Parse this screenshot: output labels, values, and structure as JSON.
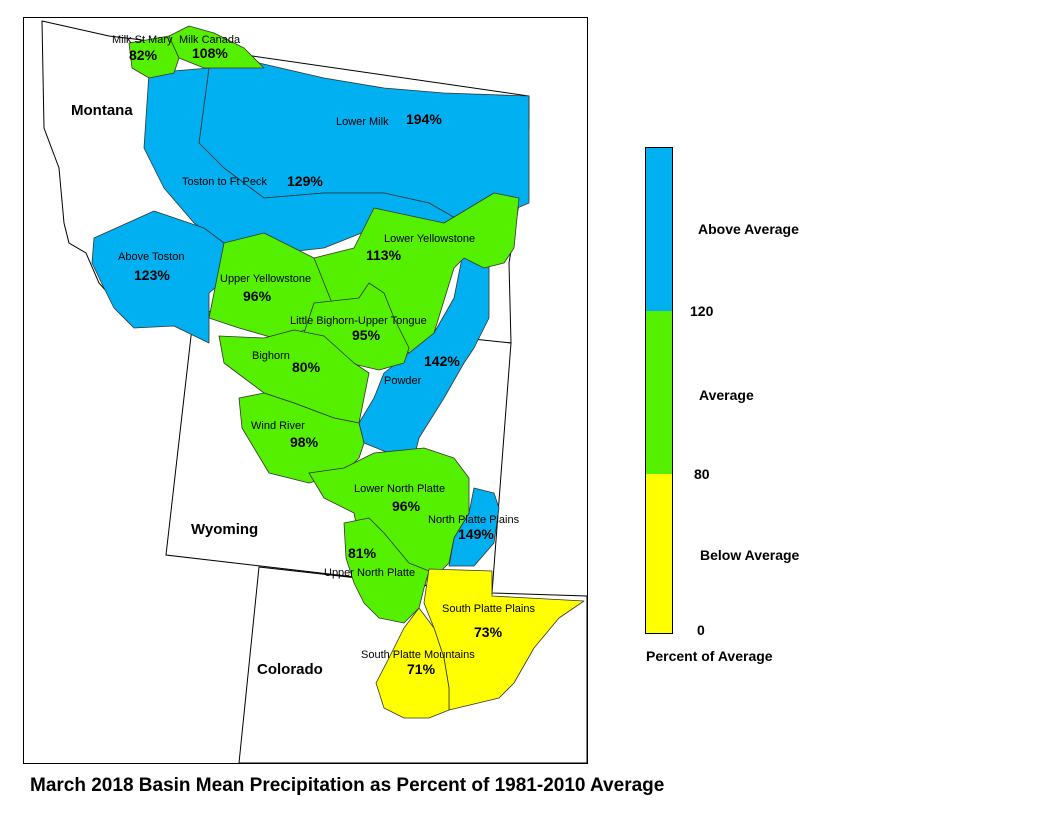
{
  "title": "March 2018 Basin Mean Precipitation as Percent of 1981-2010 Average",
  "colors": {
    "above": "#00B0F0",
    "average": "#55F000",
    "below": "#FFFF00"
  },
  "states": {
    "montana": "Montana",
    "wyoming": "Wyoming",
    "colorado": "Colorado"
  },
  "basins": {
    "milk_st_mary": {
      "name": "Milk St Mary",
      "pct": "82%",
      "category": "average"
    },
    "milk_canada": {
      "name": "Milk Canada",
      "pct": "108%",
      "category": "average"
    },
    "lower_milk": {
      "name": "Lower Milk",
      "pct": "194%",
      "category": "above"
    },
    "toston_ft_peck": {
      "name": "Toston to Ft Peck",
      "pct": "129%",
      "category": "above"
    },
    "above_toston": {
      "name": "Above Toston",
      "pct": "123%",
      "category": "above"
    },
    "lower_yellowstone": {
      "name": "Lower Yellowstone",
      "pct": "113%",
      "category": "average"
    },
    "upper_yellowstone": {
      "name": "Upper Yellowstone",
      "pct": "96%",
      "category": "average"
    },
    "little_bighorn": {
      "name": "Little Bighorn-Upper Tongue",
      "pct": "95%",
      "category": "average"
    },
    "powder": {
      "name": "Powder",
      "pct": "142%",
      "category": "above"
    },
    "bighorn": {
      "name": "Bighorn",
      "pct": "80%",
      "category": "average"
    },
    "wind_river": {
      "name": "Wind River",
      "pct": "98%",
      "category": "average"
    },
    "lower_north_platte": {
      "name": "Lower North Platte",
      "pct": "96%",
      "category": "average"
    },
    "north_platte_plains": {
      "name": "North Platte Plains",
      "pct": "149%",
      "category": "above"
    },
    "upper_north_platte": {
      "name": "Upper North Platte",
      "pct": "81%",
      "category": "average"
    },
    "south_platte_plains": {
      "name": "South Platte Plains",
      "pct": "73%",
      "category": "below"
    },
    "south_platte_mountains": {
      "name": "South Platte Mountains",
      "pct": "71%",
      "category": "below"
    }
  },
  "legend": {
    "above_label": "Above Average",
    "average_label": "Average",
    "below_label": "Below Average",
    "tick_120": "120",
    "tick_80": "80",
    "tick_0": "0",
    "caption": "Percent of Average"
  }
}
